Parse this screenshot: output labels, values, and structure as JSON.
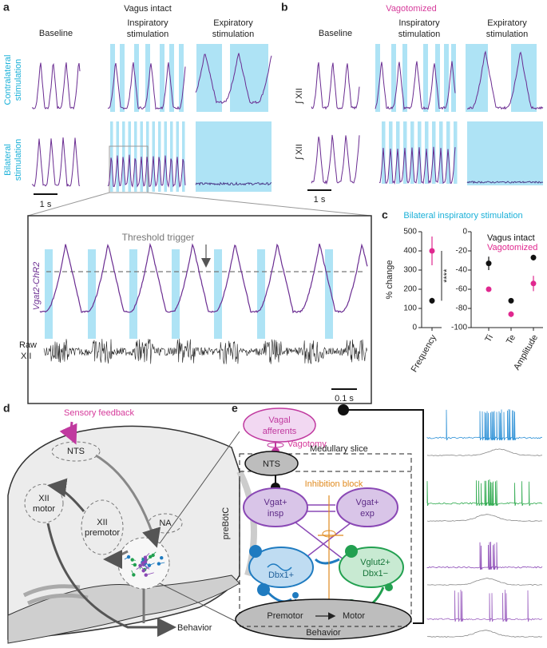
{
  "panel_labels": [
    "a",
    "b",
    "c",
    "d",
    "e"
  ],
  "panel_a": {
    "title": "Vagus intact",
    "columns": [
      [
        "Baseline"
      ],
      [
        "Inspiratory",
        "stimulation"
      ],
      [
        "Expiratory",
        "stimulation"
      ]
    ],
    "rows": [
      [
        "Contralateral",
        "stimulation"
      ],
      [
        "Bilateral",
        "stimulation"
      ]
    ],
    "scale": "1 s",
    "inset": {
      "threshold": "Threshold trigger",
      "trace": "Vgat2-ChR2",
      "raw": [
        "Raw",
        "XII"
      ],
      "scale": "0.1 s"
    }
  },
  "panel_b": {
    "title": "Vagotomized",
    "columns": [
      [
        "Baseline"
      ],
      [
        "Inspiratory",
        "stimulation"
      ],
      [
        "Expiratory",
        "stimulation"
      ]
    ],
    "ylabels": [
      "∫ XII",
      "∫ XII"
    ],
    "scale": "1 s"
  },
  "chart_data": [
    {
      "type": "errorbar",
      "title": "Bilateral inspiratory stimulation",
      "ylabel": "% change",
      "categories": [
        "Frequency"
      ],
      "ylim": [
        0,
        500
      ],
      "yticks": [
        0,
        100,
        200,
        300,
        400,
        500
      ],
      "annotation": "****",
      "series": [
        {
          "name": "Vagus intact",
          "color": "#111111",
          "values": [
            140
          ],
          "errors": [
            15
          ]
        },
        {
          "name": "Vagotomized",
          "color": "#e0288f",
          "values": [
            400
          ],
          "errors": [
            75
          ]
        }
      ]
    },
    {
      "type": "errorbar",
      "categories": [
        "Ti",
        "Te",
        "Amplitude"
      ],
      "ylim": [
        -100,
        0
      ],
      "yticks": [
        -100,
        -80,
        -60,
        -40,
        -20,
        0
      ],
      "series": [
        {
          "name": "Vagus intact",
          "color": "#111111",
          "values": [
            -33,
            -72,
            -27
          ],
          "errors": [
            7,
            2,
            3
          ]
        },
        {
          "name": "Vagotomized",
          "color": "#e0288f",
          "values": [
            -60,
            -86,
            -54
          ],
          "errors": [
            2,
            3,
            8
          ]
        }
      ]
    }
  ],
  "panel_d": {
    "sensory": "Sensory feedback",
    "nts": "NTS",
    "xii_motor": [
      "XII",
      "motor"
    ],
    "xii_premotor": [
      "XII",
      "premotor"
    ],
    "na": "NA",
    "prebotc": "preBötC",
    "behavior": "Behavior"
  },
  "panel_e": {
    "vagal": [
      "Vagal",
      "afferents"
    ],
    "vagotomy": "Vagotomy",
    "slice": "Medullary slice",
    "nts": "NTS",
    "block": "Inhibition block",
    "insp": [
      "Vgat+",
      "insp"
    ],
    "exp": [
      "Vgat+",
      "exp"
    ],
    "dbx": "Dbx1+",
    "vglut": [
      "Vglut2+",
      "Dbx1−"
    ],
    "premotor": "Premotor",
    "motor": "Motor",
    "behavior": "Behavior"
  }
}
